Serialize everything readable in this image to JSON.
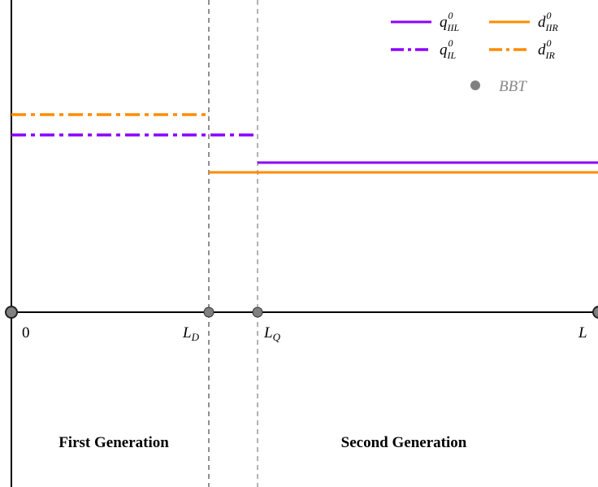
{
  "colors": {
    "purple": "#8B00FF",
    "orange": "#FF8C00",
    "axis": "#000000",
    "marker": "#808080",
    "dashed": "#555555"
  },
  "axis_labels": {
    "zero": "0",
    "ld_main": "L",
    "ld_sub": "D",
    "lq_main": "L",
    "lq_sub": "Q",
    "l": "L"
  },
  "regions": {
    "first": "First Generation",
    "second": "Second Generation"
  },
  "legend": {
    "items": [
      {
        "main": "q",
        "sup": "0",
        "sub": "IIL",
        "style": "solid",
        "color": "purple"
      },
      {
        "main": "d",
        "sup": "0",
        "sub": "IIR",
        "style": "solid",
        "color": "orange"
      },
      {
        "main": "q",
        "sup": "0",
        "sub": "IL",
        "style": "dashdot",
        "color": "purple"
      },
      {
        "main": "d",
        "sup": "0",
        "sub": "IR",
        "style": "dashdot",
        "color": "orange"
      }
    ],
    "bbt_label": "BBT"
  }
}
